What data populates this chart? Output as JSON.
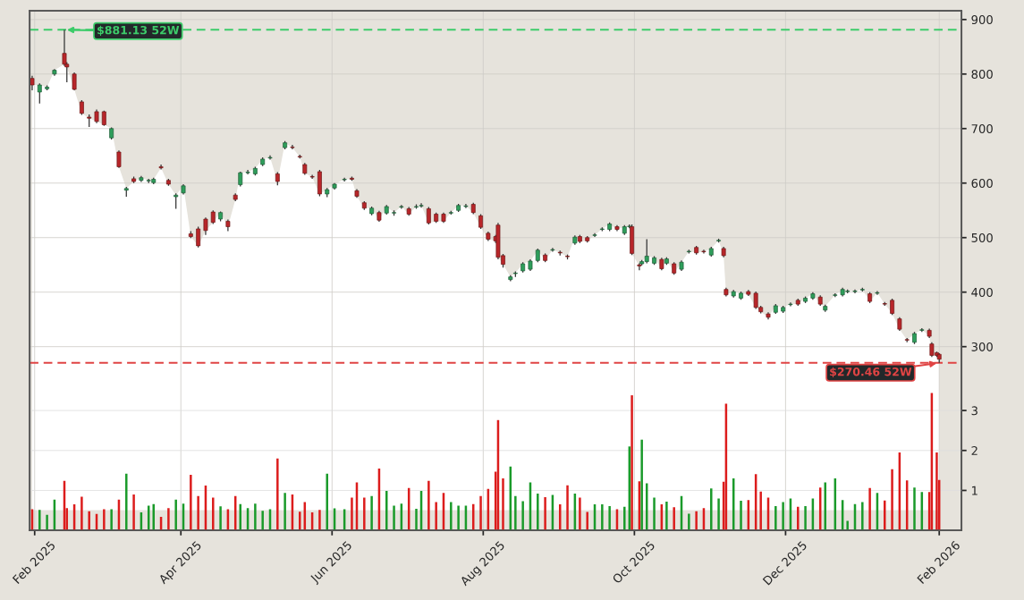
{
  "chart_data": {
    "type": "candlestick",
    "x": [
      "2025-01-31",
      "2025-02-03",
      "2025-02-06",
      "2025-02-09",
      "2025-02-13",
      "2025-02-14",
      "2025-02-17",
      "2025-02-20",
      "2025-02-23",
      "2025-02-26",
      "2025-03-01",
      "2025-03-04",
      "2025-03-07",
      "2025-03-10",
      "2025-03-13",
      "2025-03-16",
      "2025-03-19",
      "2025-03-21",
      "2025-03-24",
      "2025-03-27",
      "2025-03-30",
      "2025-04-02",
      "2025-04-05",
      "2025-04-08",
      "2025-04-11",
      "2025-04-14",
      "2025-04-17",
      "2025-04-20",
      "2025-04-23",
      "2025-04-25",
      "2025-04-28",
      "2025-05-01",
      "2025-05-04",
      "2025-05-07",
      "2025-05-10",
      "2025-05-13",
      "2025-05-16",
      "2025-05-19",
      "2025-05-21",
      "2025-05-24",
      "2025-05-27",
      "2025-05-30",
      "2025-06-02",
      "2025-06-06",
      "2025-06-09",
      "2025-06-11",
      "2025-06-14",
      "2025-06-17",
      "2025-06-20",
      "2025-06-23",
      "2025-06-26",
      "2025-06-29",
      "2025-07-02",
      "2025-07-05",
      "2025-07-07",
      "2025-07-10",
      "2025-07-13",
      "2025-07-16",
      "2025-07-19",
      "2025-07-22",
      "2025-07-25",
      "2025-07-28",
      "2025-07-31",
      "2025-08-03",
      "2025-08-06",
      "2025-08-07",
      "2025-08-09",
      "2025-08-12",
      "2025-08-14",
      "2025-08-17",
      "2025-08-20",
      "2025-08-23",
      "2025-08-26",
      "2025-08-29",
      "2025-09-01",
      "2025-09-04",
      "2025-09-07",
      "2025-09-09",
      "2025-09-12",
      "2025-09-15",
      "2025-09-18",
      "2025-09-21",
      "2025-09-24",
      "2025-09-27",
      "2025-09-29",
      "2025-09-30",
      "2025-10-03",
      "2025-10-04",
      "2025-10-06",
      "2025-10-09",
      "2025-10-12",
      "2025-10-14",
      "2025-10-17",
      "2025-10-20",
      "2025-10-23",
      "2025-10-26",
      "2025-10-29",
      "2025-11-01",
      "2025-11-04",
      "2025-11-06",
      "2025-11-07",
      "2025-11-10",
      "2025-11-13",
      "2025-11-16",
      "2025-11-19",
      "2025-11-21",
      "2025-11-24",
      "2025-11-27",
      "2025-11-30",
      "2025-12-03",
      "2025-12-06",
      "2025-12-09",
      "2025-12-12",
      "2025-12-15",
      "2025-12-17",
      "2025-12-21",
      "2025-12-24",
      "2025-12-26",
      "2025-12-29",
      "2026-01-01",
      "2026-01-04",
      "2026-01-07",
      "2026-01-10",
      "2026-01-13",
      "2026-01-16",
      "2026-01-19",
      "2026-01-22",
      "2026-01-25",
      "2026-01-28",
      "2026-01-29",
      "2026-01-31",
      "2026-02-01"
    ],
    "ohlc": [
      [
        792,
        797,
        770,
        780
      ],
      [
        767,
        783,
        746,
        780
      ],
      [
        773,
        779,
        770,
        776
      ],
      [
        800,
        809,
        797,
        807
      ],
      [
        838,
        881.13,
        815,
        818
      ],
      [
        818,
        822,
        785,
        813
      ],
      [
        800,
        803,
        770,
        772
      ],
      [
        749,
        752,
        725,
        728
      ],
      [
        721,
        726,
        703,
        719
      ],
      [
        731,
        735,
        710,
        713
      ],
      [
        731,
        733,
        705,
        707
      ],
      [
        683,
        702,
        680,
        700
      ],
      [
        657,
        660,
        628,
        630
      ],
      [
        587,
        593,
        575,
        590
      ],
      [
        608,
        612,
        600,
        603
      ],
      [
        605,
        613,
        602,
        610
      ],
      [
        604,
        608,
        600,
        605
      ],
      [
        601,
        610,
        598,
        607
      ],
      [
        630,
        634,
        625,
        628
      ],
      [
        605,
        608,
        595,
        598
      ],
      [
        575,
        581,
        553,
        578
      ],
      [
        582,
        598,
        579,
        595
      ],
      [
        507,
        512,
        499,
        502
      ],
      [
        516,
        520,
        482,
        485
      ],
      [
        534,
        537,
        505,
        513
      ],
      [
        547,
        550,
        525,
        528
      ],
      [
        534,
        548,
        530,
        546
      ],
      [
        530,
        533,
        512,
        520
      ],
      [
        578,
        581,
        567,
        570
      ],
      [
        597,
        621,
        594,
        619
      ],
      [
        619,
        624,
        616,
        620
      ],
      [
        617,
        630,
        614,
        627
      ],
      [
        634,
        647,
        631,
        644
      ],
      [
        646,
        651,
        643,
        647
      ],
      [
        617,
        620,
        596,
        603
      ],
      [
        665,
        677,
        662,
        674
      ],
      [
        666,
        670,
        662,
        665
      ],
      [
        649,
        652,
        645,
        648
      ],
      [
        634,
        637,
        615,
        618
      ],
      [
        612,
        615,
        608,
        611
      ],
      [
        621,
        624,
        576,
        580
      ],
      [
        580,
        591,
        574,
        588
      ],
      [
        591,
        600,
        588,
        598
      ],
      [
        606,
        610,
        603,
        607
      ],
      [
        609,
        612,
        604,
        607
      ],
      [
        586,
        589,
        573,
        576
      ],
      [
        564,
        567,
        551,
        554
      ],
      [
        544,
        557,
        541,
        554
      ],
      [
        546,
        549,
        529,
        532
      ],
      [
        545,
        560,
        542,
        557
      ],
      [
        545,
        550,
        540,
        546
      ],
      [
        556,
        560,
        553,
        557
      ],
      [
        553,
        556,
        540,
        543
      ],
      [
        556,
        561,
        553,
        557
      ],
      [
        558,
        563,
        555,
        559
      ],
      [
        553,
        556,
        524,
        527
      ],
      [
        543,
        546,
        527,
        530
      ],
      [
        543,
        546,
        527,
        530
      ],
      [
        545,
        549,
        542,
        546
      ],
      [
        550,
        562,
        547,
        559
      ],
      [
        557,
        562,
        554,
        558
      ],
      [
        561,
        564,
        543,
        546
      ],
      [
        540,
        543,
        516,
        519
      ],
      [
        508,
        511,
        494,
        497
      ],
      [
        502,
        505,
        490,
        494
      ],
      [
        523,
        527,
        460,
        464
      ],
      [
        467,
        470,
        445,
        451
      ],
      [
        423,
        431,
        420,
        428
      ],
      [
        434,
        438,
        428,
        435
      ],
      [
        439,
        455,
        436,
        452
      ],
      [
        442,
        460,
        439,
        457
      ],
      [
        458,
        480,
        455,
        477
      ],
      [
        468,
        471,
        455,
        458
      ],
      [
        477,
        481,
        474,
        478
      ],
      [
        473,
        476,
        467,
        472
      ],
      [
        466,
        469,
        460,
        465
      ],
      [
        490,
        504,
        487,
        501
      ],
      [
        502,
        505,
        490,
        493
      ],
      [
        500,
        503,
        491,
        494
      ],
      [
        504,
        508,
        501,
        505
      ],
      [
        515,
        519,
        512,
        516
      ],
      [
        515,
        528,
        512,
        525
      ],
      [
        520,
        523,
        512,
        515
      ],
      [
        508,
        523,
        505,
        520
      ],
      [
        520,
        524,
        517,
        521
      ],
      [
        520,
        524,
        468,
        471
      ],
      [
        450,
        453,
        440,
        448
      ],
      [
        452,
        459,
        449,
        456
      ],
      [
        456,
        497,
        453,
        466
      ],
      [
        453,
        466,
        450,
        463
      ],
      [
        460,
        463,
        440,
        443
      ],
      [
        453,
        464,
        450,
        461
      ],
      [
        452,
        455,
        432,
        435
      ],
      [
        442,
        458,
        439,
        455
      ],
      [
        474,
        478,
        471,
        475
      ],
      [
        482,
        485,
        469,
        472
      ],
      [
        475,
        478,
        471,
        474
      ],
      [
        468,
        483,
        465,
        480
      ],
      [
        494,
        498,
        491,
        495
      ],
      [
        480,
        483,
        464,
        467
      ],
      [
        405,
        408,
        392,
        395
      ],
      [
        393,
        404,
        390,
        401
      ],
      [
        389,
        401,
        386,
        398
      ],
      [
        401,
        404,
        393,
        396
      ],
      [
        398,
        401,
        369,
        372
      ],
      [
        372,
        375,
        361,
        364
      ],
      [
        360,
        363,
        350,
        354
      ],
      [
        363,
        378,
        360,
        375
      ],
      [
        365,
        375,
        362,
        372
      ],
      [
        377,
        381,
        374,
        378
      ],
      [
        385,
        388,
        375,
        378
      ],
      [
        383,
        392,
        380,
        389
      ],
      [
        389,
        400,
        386,
        397
      ],
      [
        391,
        394,
        375,
        378
      ],
      [
        367,
        377,
        364,
        374
      ],
      [
        394,
        398,
        391,
        395
      ],
      [
        395,
        408,
        392,
        405
      ],
      [
        401,
        405,
        398,
        402
      ],
      [
        401,
        405,
        398,
        402
      ],
      [
        404,
        408,
        401,
        405
      ],
      [
        397,
        400,
        380,
        383
      ],
      [
        398,
        402,
        395,
        399
      ],
      [
        379,
        382,
        375,
        378
      ],
      [
        385,
        388,
        358,
        361
      ],
      [
        351,
        354,
        329,
        332
      ],
      [
        313,
        316,
        308,
        312
      ],
      [
        308,
        327,
        305,
        324
      ],
      [
        330,
        334,
        327,
        331
      ],
      [
        330,
        333,
        316,
        319
      ],
      [
        305,
        308,
        281,
        284
      ],
      [
        289,
        291,
        281,
        284
      ],
      [
        286,
        288,
        270.46,
        277
      ]
    ],
    "series": [
      {
        "type": "area",
        "color": "#ffffff",
        "values": [
          780,
          780,
          776,
          807,
          818,
          813,
          772,
          728,
          719,
          713,
          707,
          700,
          630,
          590,
          603,
          610,
          605,
          607,
          628,
          598,
          578,
          595,
          502,
          485,
          513,
          528,
          546,
          520,
          570,
          619,
          620,
          627,
          644,
          647,
          603,
          674,
          665,
          648,
          618,
          611,
          580,
          588,
          598,
          607,
          607,
          576,
          554,
          554,
          532,
          557,
          546,
          557,
          543,
          557,
          559,
          527,
          530,
          530,
          546,
          559,
          558,
          546,
          519,
          497,
          494,
          464,
          451,
          428,
          435,
          452,
          457,
          477,
          458,
          478,
          472,
          465,
          501,
          493,
          494,
          505,
          516,
          525,
          515,
          520,
          521,
          471,
          448,
          456,
          466,
          463,
          443,
          461,
          435,
          455,
          475,
          472,
          474,
          480,
          495,
          467,
          395,
          401,
          398,
          396,
          372,
          364,
          354,
          375,
          372,
          378,
          378,
          389,
          397,
          378,
          374,
          395,
          405,
          402,
          402,
          405,
          383,
          399,
          378,
          361,
          332,
          312,
          324,
          331,
          319,
          284,
          284,
          277
        ]
      },
      {
        "type": "bar",
        "axis": "y2",
        "values": [
          0.53,
          0.51,
          0.39,
          0.77,
          1.24,
          0.56,
          0.65,
          0.84,
          0.48,
          0.41,
          0.53,
          0.53,
          0.77,
          1.42,
          0.9,
          0.45,
          0.62,
          0.66,
          0.34,
          0.56,
          0.77,
          0.67,
          1.39,
          0.86,
          1.12,
          0.82,
          0.6,
          0.53,
          0.86,
          0.66,
          0.56,
          0.67,
          0.49,
          0.53,
          1.8,
          0.94,
          0.9,
          0.47,
          0.71,
          0.45,
          0.51,
          1.42,
          0.55,
          0.53,
          0.82,
          1.2,
          0.82,
          0.86,
          1.55,
          0.99,
          0.62,
          0.67,
          1.06,
          0.54,
          0.99,
          1.24,
          0.71,
          0.94,
          0.71,
          0.62,
          0.62,
          0.66,
          0.86,
          1.04,
          1.47,
          2.76,
          1.3,
          1.6,
          0.86,
          0.73,
          1.2,
          0.92,
          0.83,
          0.89,
          0.65,
          1.13,
          0.92,
          0.82,
          0.46,
          0.65,
          0.65,
          0.61,
          0.53,
          0.59,
          2.1,
          3.38,
          1.23,
          2.27,
          1.18,
          0.82,
          0.65,
          0.72,
          0.58,
          0.86,
          0.42,
          0.48,
          0.56,
          1.05,
          0.8,
          1.22,
          3.17,
          1.3,
          0.74,
          0.76,
          1.41,
          0.97,
          0.82,
          0.61,
          0.71,
          0.8,
          0.59,
          0.61,
          0.8,
          1.07,
          1.2,
          1.3,
          0.76,
          0.24,
          0.66,
          0.71,
          1.06,
          0.94,
          0.75,
          1.53,
          1.95,
          1.25,
          1.07,
          0.96,
          0.96,
          3.44,
          1.95,
          1.26
        ],
        "colors": [
          "#dc1c1c",
          "#1a9a2a",
          "#1a9a2a",
          "#1a9a2a",
          "#dc1c1c",
          "#dc1c1c",
          "#dc1c1c",
          "#dc1c1c",
          "#dc1c1c",
          "#dc1c1c",
          "#dc1c1c",
          "#1a9a2a",
          "#dc1c1c",
          "#1a9a2a",
          "#dc1c1c",
          "#1a9a2a",
          "#1a9a2a",
          "#1a9a2a",
          "#dc1c1c",
          "#dc1c1c",
          "#1a9a2a",
          "#1a9a2a",
          "#dc1c1c",
          "#dc1c1c",
          "#dc1c1c",
          "#dc1c1c",
          "#1a9a2a",
          "#dc1c1c",
          "#dc1c1c",
          "#1a9a2a",
          "#1a9a2a",
          "#1a9a2a",
          "#1a9a2a",
          "#1a9a2a",
          "#dc1c1c",
          "#1a9a2a",
          "#dc1c1c",
          "#dc1c1c",
          "#dc1c1c",
          "#dc1c1c",
          "#dc1c1c",
          "#1a9a2a",
          "#1a9a2a",
          "#1a9a2a",
          "#dc1c1c",
          "#dc1c1c",
          "#dc1c1c",
          "#1a9a2a",
          "#dc1c1c",
          "#1a9a2a",
          "#1a9a2a",
          "#1a9a2a",
          "#dc1c1c",
          "#1a9a2a",
          "#1a9a2a",
          "#dc1c1c",
          "#dc1c1c",
          "#dc1c1c",
          "#1a9a2a",
          "#1a9a2a",
          "#1a9a2a",
          "#dc1c1c",
          "#dc1c1c",
          "#dc1c1c",
          "#dc1c1c",
          "#dc1c1c",
          "#dc1c1c",
          "#1a9a2a",
          "#1a9a2a",
          "#1a9a2a",
          "#1a9a2a",
          "#1a9a2a",
          "#dc1c1c",
          "#1a9a2a",
          "#dc1c1c",
          "#dc1c1c",
          "#1a9a2a",
          "#dc1c1c",
          "#dc1c1c",
          "#1a9a2a",
          "#1a9a2a",
          "#1a9a2a",
          "#dc1c1c",
          "#1a9a2a",
          "#1a9a2a",
          "#dc1c1c",
          "#dc1c1c",
          "#1a9a2a",
          "#1a9a2a",
          "#1a9a2a",
          "#dc1c1c",
          "#1a9a2a",
          "#dc1c1c",
          "#1a9a2a",
          "#1a9a2a",
          "#dc1c1c",
          "#dc1c1c",
          "#1a9a2a",
          "#1a9a2a",
          "#dc1c1c",
          "#dc1c1c",
          "#1a9a2a",
          "#1a9a2a",
          "#dc1c1c",
          "#dc1c1c",
          "#dc1c1c",
          "#dc1c1c",
          "#1a9a2a",
          "#1a9a2a",
          "#1a9a2a",
          "#dc1c1c",
          "#1a9a2a",
          "#1a9a2a",
          "#dc1c1c",
          "#1a9a2a",
          "#1a9a2a",
          "#1a9a2a",
          "#1a9a2a",
          "#1a9a2a",
          "#1a9a2a",
          "#dc1c1c",
          "#1a9a2a",
          "#dc1c1c",
          "#dc1c1c",
          "#dc1c1c",
          "#dc1c1c",
          "#1a9a2a",
          "#1a9a2a",
          "#dc1c1c",
          "#dc1c1c",
          "#dc1c1c",
          "#dc1c1c"
        ]
      }
    ],
    "xlim": [
      "2025-01-30",
      "2026-02-10"
    ],
    "xticks": [
      {
        "value": "2025-02-01",
        "label": "Feb 2025"
      },
      {
        "value": "2025-04-01",
        "label": "Apr 2025"
      },
      {
        "value": "2025-06-01",
        "label": "Jun 2025"
      },
      {
        "value": "2025-08-01",
        "label": "Aug 2025"
      },
      {
        "value": "2025-10-01",
        "label": "Oct 2025"
      },
      {
        "value": "2025-12-01",
        "label": "Dec 2025"
      },
      {
        "value": "2026-02-01",
        "label": "Feb 2026"
      }
    ],
    "ylim": [
      -37,
      916
    ],
    "yticks": [
      300,
      400,
      500,
      600,
      700,
      800,
      900
    ],
    "y2lim": [
      0,
      13
    ],
    "y2ticks": [
      1,
      2,
      3
    ],
    "grid": true,
    "ref_lines": [
      {
        "axis": "y",
        "value": 881.13,
        "color": "#3dcc6a",
        "line_style": "dashed"
      },
      {
        "axis": "y",
        "value": 270.46,
        "color": "#e04444",
        "line_style": "dashed"
      }
    ],
    "annotations": [
      {
        "text": "$881.13 52W",
        "x": "2025-02-13",
        "y": 881.13
      },
      {
        "text": "$270.46 52W",
        "x": "2026-02-01",
        "y": 270.46
      }
    ]
  }
}
